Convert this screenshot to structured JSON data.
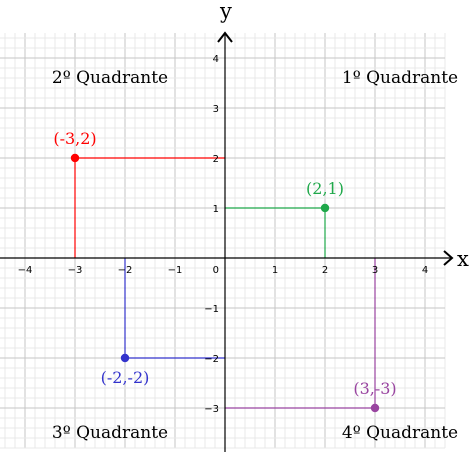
{
  "chart_data": {
    "type": "scatter",
    "xlabel": "x",
    "ylabel": "y",
    "xlim": [
      -4.5,
      4.4
    ],
    "ylim": [
      -3.8,
      4.5
    ],
    "grid": true,
    "x_ticks": [
      -4,
      -3,
      -2,
      -1,
      1,
      2,
      3,
      4
    ],
    "y_ticks": [
      -3,
      -2,
      -1,
      1,
      2,
      3,
      4
    ],
    "origin_label": "0",
    "quadrants": [
      {
        "label": "1º Quadrante",
        "anchor": [
          3.5,
          3.5
        ]
      },
      {
        "label": "2º Quadrante",
        "anchor": [
          -2.3,
          3.5
        ]
      },
      {
        "label": "3º Quadrante",
        "anchor": [
          -2.3,
          -3.6
        ]
      },
      {
        "label": "4º Quadrante",
        "anchor": [
          3.5,
          -3.6
        ]
      }
    ],
    "points": [
      {
        "x": -3,
        "y": 2,
        "label": "(-3,2)",
        "color": "#ff0000",
        "label_pos": "above"
      },
      {
        "x": 2,
        "y": 1,
        "label": "(2,1)",
        "color": "#1fa84a",
        "label_pos": "above"
      },
      {
        "x": -2,
        "y": -2,
        "label": "(-2,-2)",
        "color": "#3333cc",
        "label_pos": "below"
      },
      {
        "x": 3,
        "y": -3,
        "label": "(3,-3)",
        "color": "#9944a0",
        "label_pos": "above"
      }
    ],
    "colors": {
      "grid_minor": "#e8e8e8",
      "grid_major": "#c6c6c6",
      "axis": "#000000"
    }
  }
}
